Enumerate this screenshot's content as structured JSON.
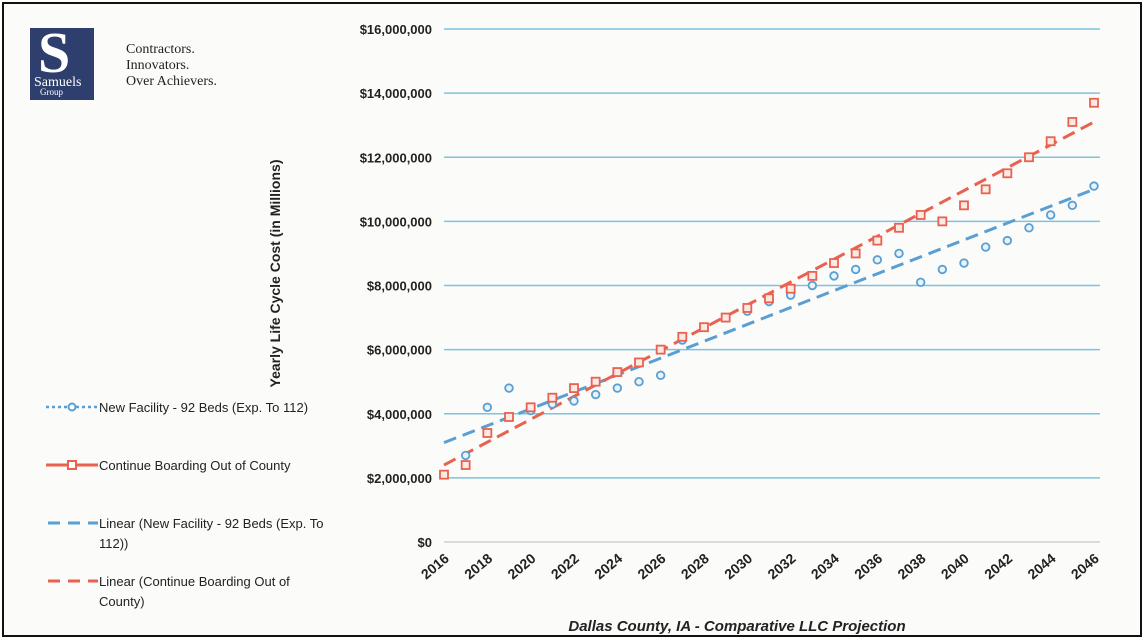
{
  "logo": {
    "letter": "S",
    "name": "Samuels",
    "group": "Group"
  },
  "tagline": [
    "Contractors.",
    "Innovators.",
    "Over Achievers."
  ],
  "colors": {
    "blue": "#5a9fd4",
    "red": "#e8624f",
    "grid": "#7cc3df",
    "logo": "#2e3f6e"
  },
  "legend": [
    {
      "label": "New Facility - 92 Beds (Exp. To 112)",
      "style": "blue-dotted-circle"
    },
    {
      "label": "Continue Boarding Out of County",
      "style": "red-solid-square"
    },
    {
      "label": "Linear (New Facility - 92 Beds (Exp. To 112))",
      "style": "blue-dashed"
    },
    {
      "label": "Linear (Continue Boarding Out of County)",
      "style": "red-dashed"
    }
  ],
  "chart_data": {
    "type": "scatter",
    "title": "Dallas County, IA - Comparative LLC Projection",
    "xlabel": "Dallas County, IA - Comparative LLC Projection",
    "ylabel": "Yearly Life Cycle Cost (in Millions)",
    "x": [
      2016,
      2017,
      2018,
      2019,
      2020,
      2021,
      2022,
      2023,
      2024,
      2025,
      2026,
      2027,
      2028,
      2029,
      2030,
      2031,
      2032,
      2033,
      2034,
      2035,
      2036,
      2037,
      2038,
      2039,
      2040,
      2041,
      2042,
      2043,
      2044,
      2045,
      2046
    ],
    "xticks": [
      "2016",
      "2018",
      "2020",
      "2022",
      "2024",
      "2026",
      "2028",
      "2030",
      "2032",
      "2034",
      "2036",
      "2038",
      "2040",
      "2042",
      "2044",
      "2046"
    ],
    "yticks": [
      "$0",
      "$2,000,000",
      "$4,000,000",
      "$6,000,000",
      "$8,000,000",
      "$10,000,000",
      "$12,000,000",
      "$14,000,000",
      "$16,000,000"
    ],
    "ylim": [
      0,
      16000000
    ],
    "xlim": [
      2016,
      2046
    ],
    "grid": "horizontal",
    "legend_position": "left",
    "series": [
      {
        "name": "New Facility - 92 Beds (Exp. To 112)",
        "marker": "circle",
        "values": [
          2100000,
          2700000,
          4200000,
          4800000,
          4100000,
          4300000,
          4400000,
          4600000,
          4800000,
          5000000,
          5200000,
          6300000,
          6700000,
          7000000,
          7200000,
          7500000,
          7700000,
          8000000,
          8300000,
          8500000,
          8800000,
          9000000,
          8100000,
          8500000,
          8700000,
          9200000,
          9400000,
          9800000,
          10200000,
          10500000,
          11100000
        ]
      },
      {
        "name": "Continue Boarding Out of County",
        "marker": "square",
        "values": [
          2100000,
          2400000,
          3400000,
          3900000,
          4200000,
          4500000,
          4800000,
          5000000,
          5300000,
          5600000,
          6000000,
          6400000,
          6700000,
          7000000,
          7300000,
          7600000,
          7900000,
          8300000,
          8700000,
          9000000,
          9400000,
          9800000,
          10200000,
          10000000,
          10500000,
          11000000,
          11500000,
          12000000,
          12500000,
          13100000,
          13700000
        ]
      }
    ],
    "trendlines": [
      {
        "name": "Linear (New Facility - 92 Beds (Exp. To 112))",
        "from": [
          2016,
          3100000
        ],
        "to": [
          2046,
          11000000
        ]
      },
      {
        "name": "Linear (Continue Boarding Out of County)",
        "from": [
          2016,
          2400000
        ],
        "to": [
          2046,
          13100000
        ]
      }
    ]
  }
}
